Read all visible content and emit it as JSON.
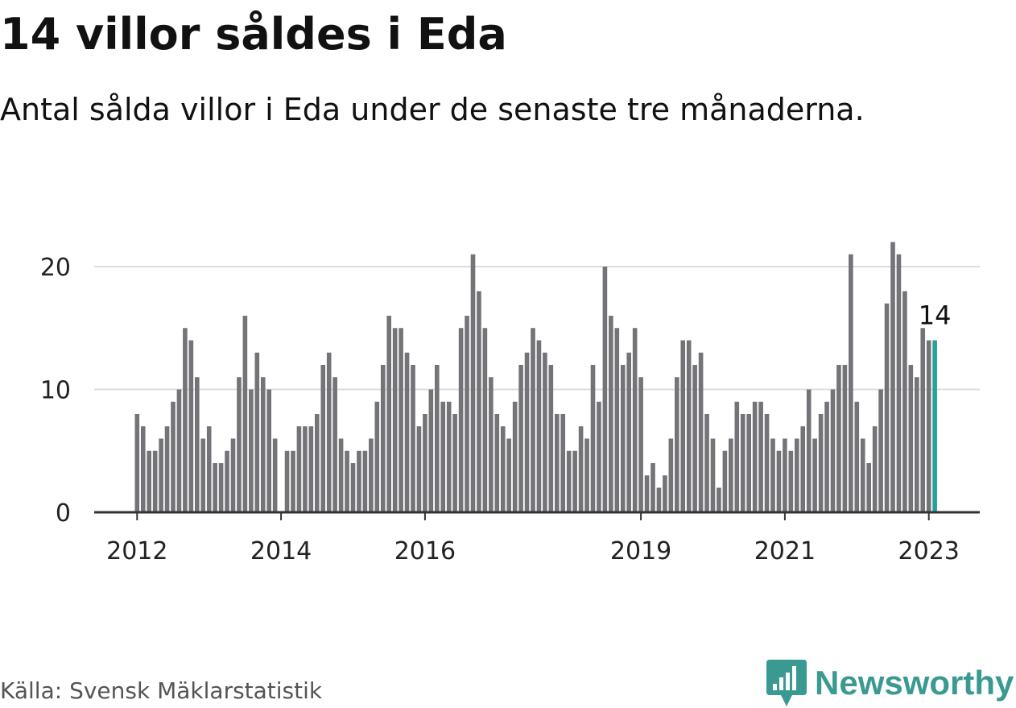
{
  "title": "14 villor såldes i Eda",
  "subtitle": "Antal sålda villor i Eda under de senaste tre månaderna.",
  "source": "Källa: Svensk Mäklarstatistik",
  "logo": {
    "name": "Newsworthy",
    "icon": "bar-chart-badge-icon",
    "color": "#3a9a92"
  },
  "chart_data": {
    "type": "bar",
    "x_start": "2012-01",
    "values": [
      8,
      7,
      5,
      5,
      6,
      7,
      9,
      10,
      15,
      14,
      11,
      6,
      7,
      4,
      4,
      5,
      6,
      11,
      16,
      10,
      13,
      11,
      10,
      6,
      0,
      5,
      5,
      7,
      7,
      7,
      8,
      12,
      13,
      11,
      6,
      5,
      4,
      5,
      5,
      6,
      9,
      12,
      16,
      15,
      15,
      13,
      12,
      7,
      8,
      10,
      12,
      9,
      9,
      8,
      15,
      16,
      21,
      18,
      15,
      11,
      8,
      7,
      6,
      9,
      12,
      13,
      15,
      14,
      13,
      12,
      8,
      8,
      5,
      5,
      7,
      6,
      12,
      9,
      20,
      16,
      15,
      12,
      13,
      15,
      11,
      3,
      4,
      2,
      3,
      6,
      11,
      14,
      14,
      12,
      13,
      8,
      6,
      2,
      5,
      6,
      9,
      8,
      8,
      9,
      9,
      8,
      6,
      5,
      6,
      5,
      6,
      7,
      10,
      6,
      8,
      9,
      10,
      12,
      12,
      21,
      9,
      6,
      4,
      7,
      10,
      17,
      22,
      21,
      18,
      12,
      11,
      15,
      14,
      14
    ],
    "highlight_index": 133,
    "highlight_label": "14",
    "x_ticks": [
      {
        "label": "2012",
        "index": 0
      },
      {
        "label": "2014",
        "index": 24
      },
      {
        "label": "2016",
        "index": 48
      },
      {
        "label": "2019",
        "index": 84
      },
      {
        "label": "2021",
        "index": 108
      },
      {
        "label": "2023",
        "index": 132
      }
    ],
    "y_ticks": [
      0,
      10,
      20
    ],
    "ylim": [
      0,
      24
    ],
    "grid": true,
    "colors": {
      "bar": "#747378",
      "highlight": "#2aa198",
      "grid": "#dddddd",
      "axis": "#333333"
    }
  }
}
